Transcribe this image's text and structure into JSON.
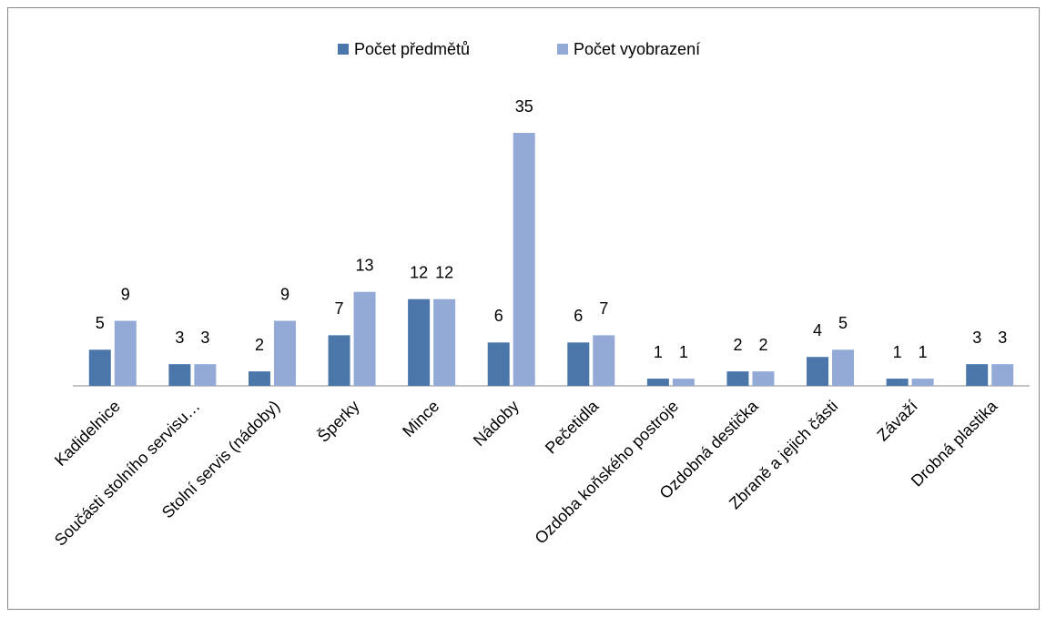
{
  "chart_data": {
    "type": "bar",
    "categories": [
      "Kadidelnice",
      "Součásti stolního servisu…",
      "Stolní servis (nádoby)",
      "Šperky",
      "Mince",
      "Nádoby",
      "Pečetidla",
      "Ozdoba koňského postroje",
      "Ozdobná destička",
      "Zbraně a jejich části",
      "Závaží",
      "Drobná plastika"
    ],
    "series": [
      {
        "name": "Počet předmětů",
        "color": "#4a76aa",
        "values": [
          5,
          3,
          2,
          7,
          12,
          6,
          6,
          1,
          2,
          4,
          1,
          3
        ]
      },
      {
        "name": "Počet vyobrazení",
        "color": "#94aad6",
        "values": [
          9,
          3,
          9,
          13,
          12,
          35,
          7,
          1,
          2,
          5,
          1,
          3
        ]
      }
    ],
    "legend": "top"
  }
}
